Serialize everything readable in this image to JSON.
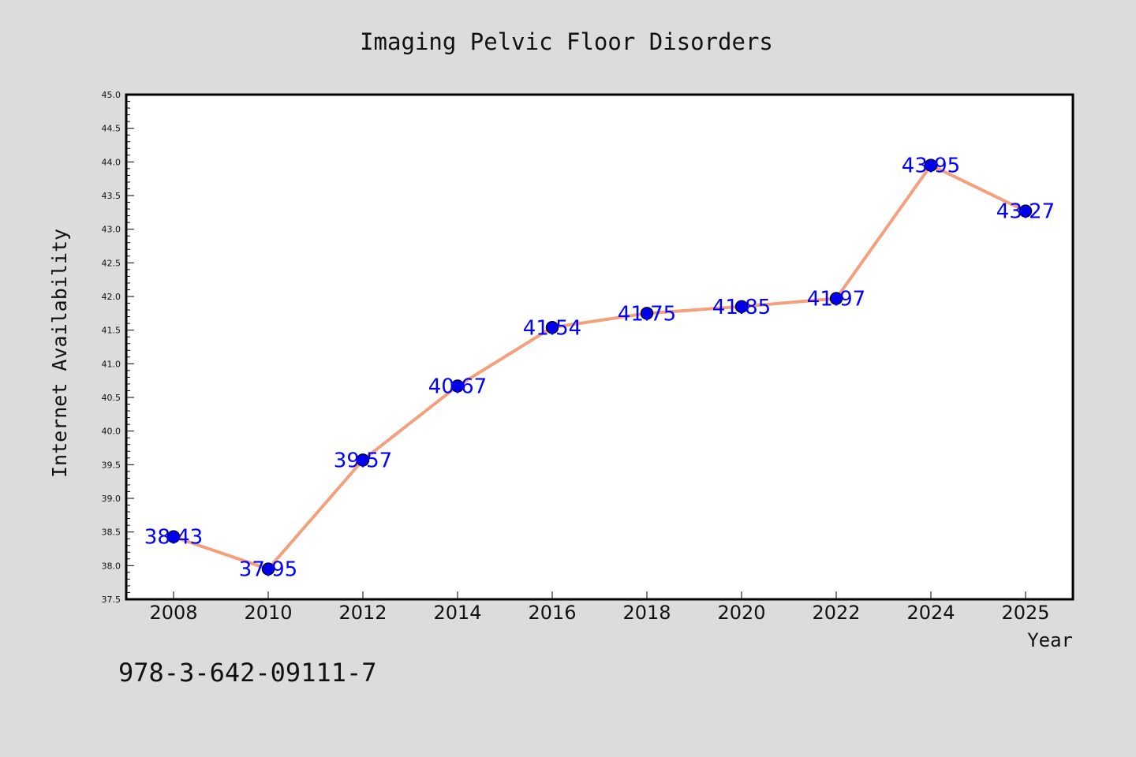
{
  "chart_data": {
    "type": "line",
    "title": "Imaging Pelvic Floor Disorders",
    "xlabel": "Year",
    "ylabel": "Internet Availability",
    "categories": [
      "2008",
      "2010",
      "2012",
      "2014",
      "2016",
      "2018",
      "2020",
      "2022",
      "2024",
      "2025"
    ],
    "series": [
      {
        "values": [
          38.43,
          37.95,
          39.57,
          40.67,
          41.54,
          41.75,
          41.85,
          41.97,
          43.95,
          43.27
        ]
      }
    ],
    "data_labels": [
      "38.43",
      "37.95",
      "39.57",
      "40.67",
      "41.54",
      "41.75",
      "41.85",
      "41.97",
      "43.95",
      "43.27"
    ],
    "ylim": [
      37.5,
      45.0
    ],
    "yticks": [
      "37.5",
      "38.0",
      "38.5",
      "39.0",
      "39.5",
      "40.0",
      "40.5",
      "41.0",
      "41.5",
      "42.0",
      "42.5",
      "43.0",
      "43.5",
      "44.0",
      "44.5",
      "45.0"
    ],
    "grid": false,
    "legend": "none",
    "colors": {
      "line": "#f4a07c",
      "marker": "#0000ee",
      "marker_edge": "#000033",
      "data_label": "#0000ff",
      "plot_background": "#ffffff",
      "page_background": "#dcdcdc"
    }
  },
  "footnote": "978-3-642-09111-7"
}
